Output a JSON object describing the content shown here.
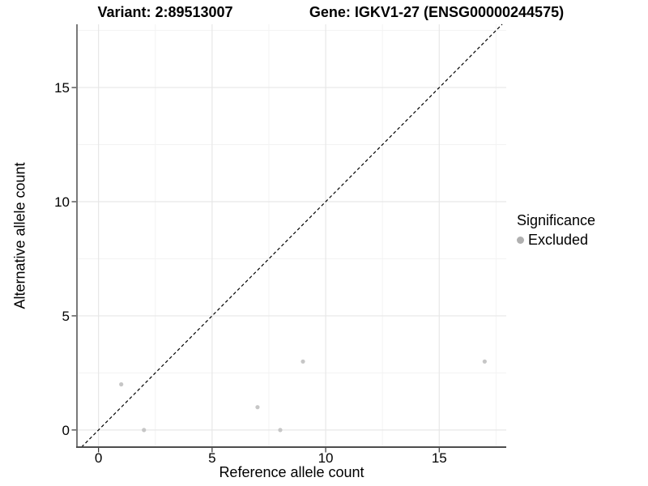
{
  "titles": {
    "variant": "Variant: 2:89513007",
    "gene": "Gene: IGKV1-27 (ENSG00000244575)"
  },
  "chart_data": {
    "type": "scatter",
    "xlabel": "Reference allele count",
    "ylabel": "Alternative allele count",
    "xlim": [
      -0.95,
      17.95
    ],
    "ylim": [
      -0.75,
      17.77
    ],
    "x_ticks": [
      0,
      5,
      10,
      15
    ],
    "y_ticks": [
      0,
      5,
      10,
      15
    ],
    "x_minor_ticks": [
      2.5,
      7.5,
      12.5,
      17.5
    ],
    "y_minor_ticks": [
      2.5,
      7.5,
      12.5,
      17.5
    ],
    "grid": "on",
    "identity_line": {
      "slope": 1,
      "intercept": 0,
      "style": "dashed",
      "color": "#000000"
    },
    "series": [
      {
        "name": "Excluded",
        "marker": "circle",
        "color": "#c6c6c6",
        "points": [
          [
            1,
            2
          ],
          [
            2,
            0
          ],
          [
            7,
            1
          ],
          [
            8,
            0
          ],
          [
            9,
            3
          ],
          [
            17,
            3
          ]
        ]
      }
    ],
    "legend": {
      "title": "Significance",
      "position": "right",
      "items": [
        {
          "label": "Excluded",
          "color": "#b0b0b0"
        }
      ]
    }
  },
  "colors": {
    "background": "#ffffff",
    "grid_major": "#e7e7e7",
    "grid_minor": "#f3f3f3",
    "axis_line": "#4d4d4d",
    "tick_mark": "#333333",
    "text": "#000000"
  }
}
